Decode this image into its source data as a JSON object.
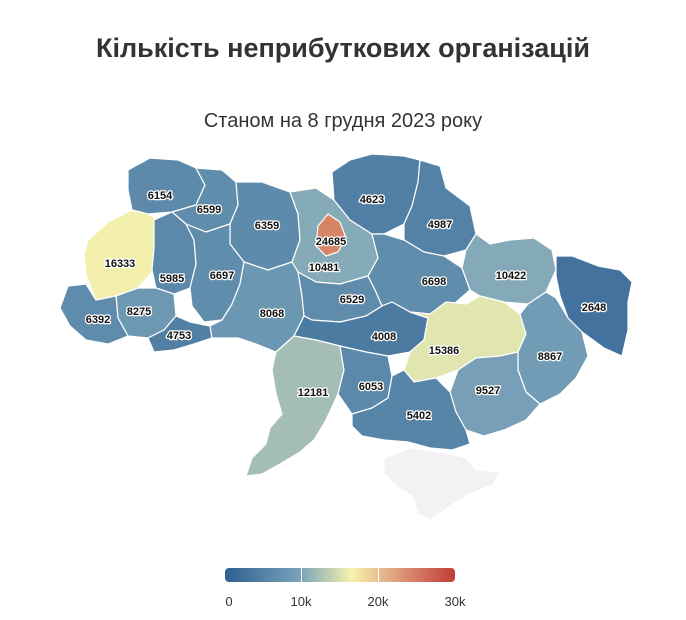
{
  "title": "Кількість неприбуткових організацій",
  "subtitle": "Станом на 8 грудня 2023 року",
  "colors": {
    "low": "#2d6093",
    "mid_low": "#7aa3b9",
    "mid": "#f6f2ae",
    "high": "#c13e35",
    "no_data": "#f2f2f4"
  },
  "legend": {
    "ticks": [
      "0",
      "10k",
      "20k",
      "30k"
    ],
    "range": [
      0,
      30000
    ]
  },
  "chart_data": {
    "type": "choropleth",
    "regions": [
      {
        "id": "volyn",
        "value": 6154
      },
      {
        "id": "rivne",
        "value": 6599
      },
      {
        "id": "zhytomyr",
        "value": 6359
      },
      {
        "id": "kyiv-city",
        "value": 24685
      },
      {
        "id": "kyiv-oblast",
        "value": 10481
      },
      {
        "id": "chernihiv",
        "value": 4623
      },
      {
        "id": "sumy",
        "value": 4987
      },
      {
        "id": "lviv",
        "value": 16333
      },
      {
        "id": "ternopil",
        "value": 5985
      },
      {
        "id": "khmelnytskyi",
        "value": 6697
      },
      {
        "id": "ivano-frankivsk",
        "value": 8275
      },
      {
        "id": "zakarpattia",
        "value": 6392
      },
      {
        "id": "chernivtsi",
        "value": 4753
      },
      {
        "id": "vinnytsia",
        "value": 8068
      },
      {
        "id": "cherkasy",
        "value": 6529
      },
      {
        "id": "poltava",
        "value": 6698
      },
      {
        "id": "kharkiv",
        "value": 10422
      },
      {
        "id": "luhansk",
        "value": 2648
      },
      {
        "id": "kirovohrad",
        "value": 4008
      },
      {
        "id": "dnipropetrovsk",
        "value": 15386
      },
      {
        "id": "donetsk",
        "value": 8867
      },
      {
        "id": "odesa",
        "value": 12181
      },
      {
        "id": "mykolaiv",
        "value": 6053
      },
      {
        "id": "zaporizhzhia",
        "value": 9527
      },
      {
        "id": "kherson",
        "value": 5402
      },
      {
        "id": "crimea",
        "value": null
      }
    ]
  }
}
